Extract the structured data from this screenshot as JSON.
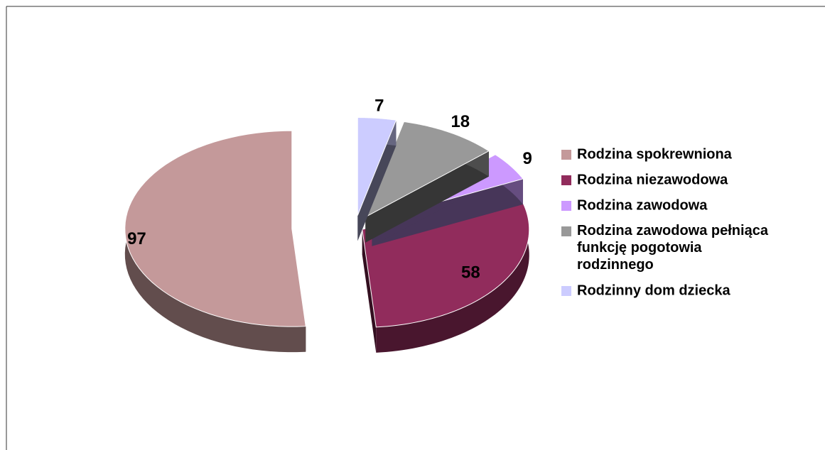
{
  "chart_data": {
    "type": "pie3d",
    "series": [
      {
        "name": "Rodzina spokrewniona",
        "color": "#c4999a",
        "values": [
          97
        ]
      },
      {
        "name": "Rodzina niezawodowa",
        "color": "#912c5c",
        "values": [
          58
        ]
      },
      {
        "name": "Rodzina zawodowa",
        "color": "#cc99ff",
        "values": [
          9
        ]
      },
      {
        "name": "Rodzina zawodowa pełniąca funkcję pogotowia rodzinnego",
        "color": "#999999",
        "values": [
          18
        ]
      },
      {
        "name": "Rodzinny dom dziecka",
        "color": "#ccccff",
        "values": [
          7
        ]
      }
    ],
    "legend": "right"
  }
}
